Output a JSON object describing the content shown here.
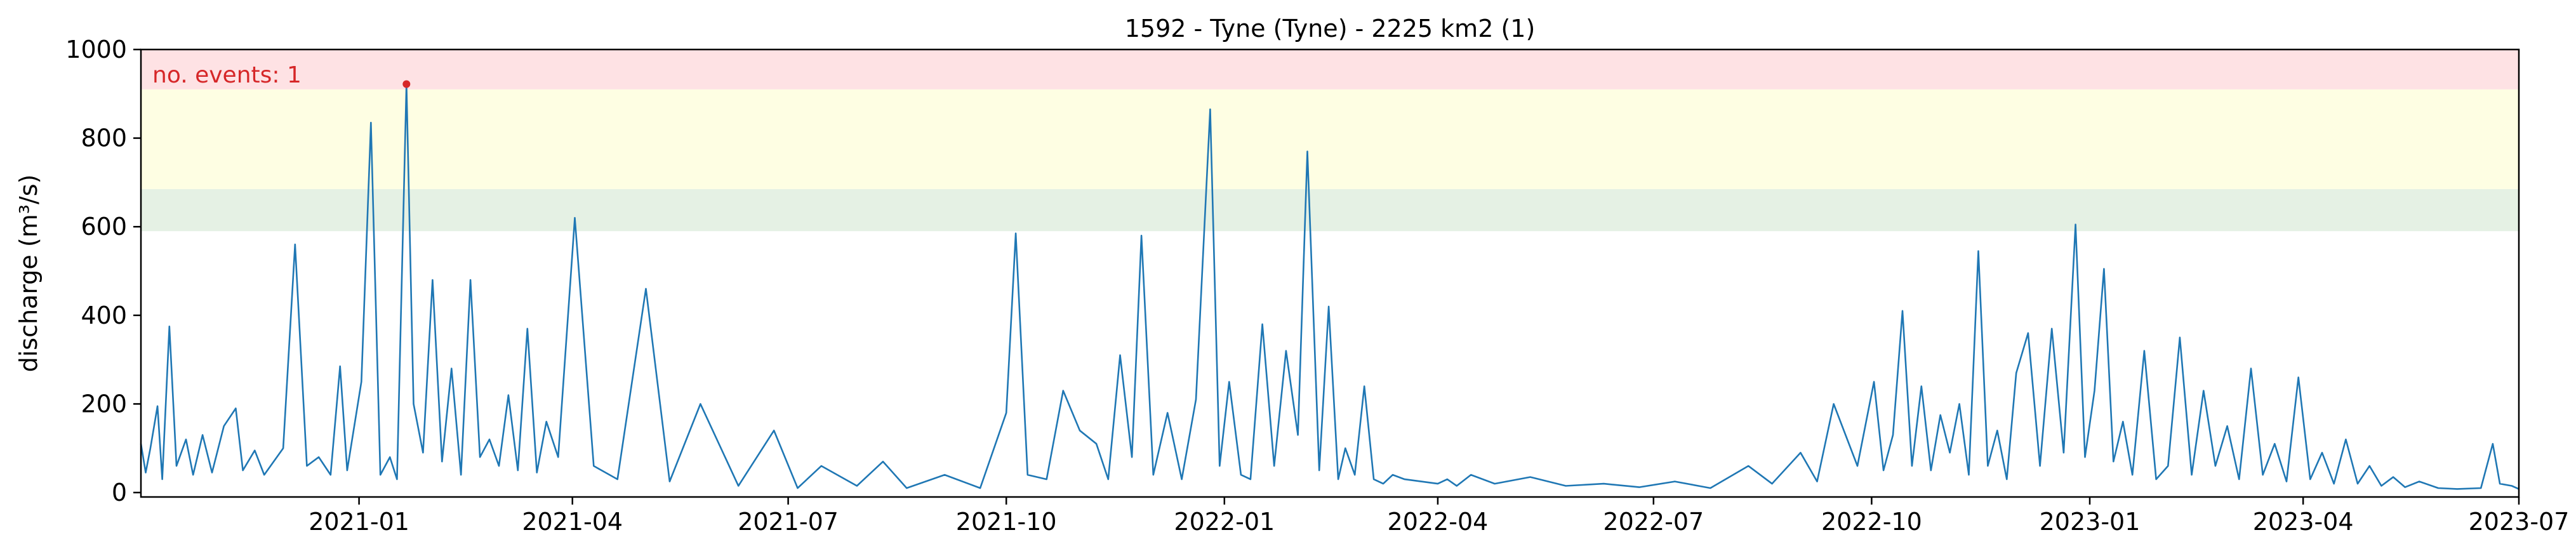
{
  "chart_data": {
    "type": "line",
    "title": "1592 - Tyne (Tyne) - 2225 km2 (1)",
    "xlabel": "",
    "ylabel": "discharge (m³/s)",
    "xlim": [
      "2020-10-01",
      "2023-07-01"
    ],
    "ylim": [
      -10,
      1000
    ],
    "xticks": [
      "2021-01",
      "2021-04",
      "2021-07",
      "2021-10",
      "2022-01",
      "2022-04",
      "2022-07",
      "2022-10",
      "2023-01",
      "2023-04",
      "2023-07"
    ],
    "yticks": [
      0,
      200,
      400,
      600,
      800,
      1000
    ],
    "grid": false,
    "line_color": "#1f77b4",
    "thresholds": [
      {
        "from": 590,
        "to": 685,
        "color": "#e5f1e4"
      },
      {
        "from": 685,
        "to": 910,
        "color": "#fefee3"
      },
      {
        "from": 910,
        "to": 1000,
        "color": "#fee2e4"
      }
    ],
    "event_marker": {
      "x": "2021-01-21",
      "y": 922,
      "color": "#d62728"
    },
    "annotation": {
      "text": "no. events: 1",
      "color": "#d62728"
    },
    "series": [
      {
        "x": [
          "2020-10-01",
          "2020-10-03",
          "2020-10-05",
          "2020-10-08",
          "2020-10-10",
          "2020-10-13",
          "2020-10-16",
          "2020-10-20",
          "2020-10-23",
          "2020-10-27",
          "2020-10-31",
          "2020-11-05",
          "2020-11-10",
          "2020-11-13",
          "2020-11-18",
          "2020-11-22",
          "2020-11-26",
          "2020-11-30",
          "2020-12-05",
          "2020-12-10",
          "2020-12-15",
          "2020-12-20",
          "2020-12-24",
          "2020-12-27",
          "2021-01-02",
          "2021-01-06",
          "2021-01-10",
          "2021-01-14",
          "2021-01-17",
          "2021-01-21",
          "2021-01-24",
          "2021-01-28",
          "2021-02-01",
          "2021-02-05",
          "2021-02-09",
          "2021-02-13",
          "2021-02-17",
          "2021-02-21",
          "2021-02-25",
          "2021-03-01",
          "2021-03-05",
          "2021-03-09",
          "2021-03-13",
          "2021-03-17",
          "2021-03-21",
          "2021-03-26",
          "2021-04-02",
          "2021-04-10",
          "2021-04-20",
          "2021-05-02",
          "2021-05-12",
          "2021-05-25",
          "2021-06-10",
          "2021-06-25",
          "2021-07-05",
          "2021-07-15",
          "2021-07-30",
          "2021-08-10",
          "2021-08-20",
          "2021-09-05",
          "2021-09-20",
          "2021-10-01",
          "2021-10-05",
          "2021-10-10",
          "2021-10-18",
          "2021-10-25",
          "2021-11-01",
          "2021-11-08",
          "2021-11-13",
          "2021-11-18",
          "2021-11-23",
          "2021-11-27",
          "2021-12-02",
          "2021-12-08",
          "2021-12-14",
          "2021-12-20",
          "2021-12-26",
          "2021-12-30",
          "2022-01-03",
          "2022-01-08",
          "2022-01-12",
          "2022-01-17",
          "2022-01-22",
          "2022-01-27",
          "2022-02-01",
          "2022-02-05",
          "2022-02-10",
          "2022-02-14",
          "2022-02-18",
          "2022-02-21",
          "2022-02-25",
          "2022-03-01",
          "2022-03-05",
          "2022-03-09",
          "2022-03-13",
          "2022-03-18",
          "2022-03-25",
          "2022-04-01",
          "2022-04-05",
          "2022-04-09",
          "2022-04-15",
          "2022-04-25",
          "2022-05-10",
          "2022-05-25",
          "2022-06-10",
          "2022-06-25",
          "2022-07-10",
          "2022-07-25",
          "2022-08-10",
          "2022-08-20",
          "2022-09-01",
          "2022-09-08",
          "2022-09-15",
          "2022-09-25",
          "2022-10-02",
          "2022-10-06",
          "2022-10-10",
          "2022-10-14",
          "2022-10-18",
          "2022-10-22",
          "2022-10-26",
          "2022-10-30",
          "2022-11-03",
          "2022-11-07",
          "2022-11-11",
          "2022-11-15",
          "2022-11-19",
          "2022-11-23",
          "2022-11-27",
          "2022-12-01",
          "2022-12-06",
          "2022-12-11",
          "2022-12-16",
          "2022-12-21",
          "2022-12-26",
          "2022-12-30",
          "2023-01-03",
          "2023-01-07",
          "2023-01-11",
          "2023-01-15",
          "2023-01-19",
          "2023-01-24",
          "2023-01-29",
          "2023-02-03",
          "2023-02-08",
          "2023-02-13",
          "2023-02-18",
          "2023-02-23",
          "2023-02-28",
          "2023-03-05",
          "2023-03-10",
          "2023-03-15",
          "2023-03-20",
          "2023-03-25",
          "2023-03-30",
          "2023-04-04",
          "2023-04-09",
          "2023-04-14",
          "2023-04-19",
          "2023-04-24",
          "2023-04-29",
          "2023-05-04",
          "2023-05-09",
          "2023-05-14",
          "2023-05-20",
          "2023-05-28",
          "2023-06-05",
          "2023-06-15",
          "2023-06-20",
          "2023-06-23",
          "2023-06-28",
          "2023-07-01"
        ],
        "y": [
          110,
          45,
          100,
          195,
          30,
          375,
          60,
          120,
          40,
          130,
          45,
          150,
          190,
          50,
          95,
          40,
          70,
          100,
          560,
          60,
          80,
          40,
          285,
          50,
          250,
          835,
          40,
          80,
          30,
          922,
          200,
          90,
          480,
          70,
          280,
          40,
          480,
          80,
          120,
          60,
          220,
          50,
          370,
          45,
          160,
          80,
          620,
          60,
          30,
          460,
          25,
          200,
          15,
          140,
          10,
          60,
          15,
          70,
          10,
          40,
          10,
          180,
          585,
          40,
          30,
          230,
          140,
          110,
          30,
          310,
          80,
          580,
          40,
          180,
          30,
          210,
          865,
          60,
          250,
          40,
          30,
          380,
          60,
          320,
          130,
          770,
          50,
          420,
          30,
          100,
          40,
          240,
          30,
          20,
          40,
          30,
          25,
          20,
          30,
          15,
          40,
          20,
          35,
          15,
          20,
          12,
          25,
          10,
          60,
          20,
          90,
          25,
          200,
          60,
          250,
          50,
          130,
          410,
          60,
          240,
          50,
          175,
          90,
          200,
          40,
          545,
          60,
          140,
          30,
          270,
          360,
          60,
          370,
          90,
          605,
          80,
          230,
          505,
          70,
          160,
          40,
          320,
          30,
          60,
          350,
          40,
          230,
          60,
          150,
          30,
          280,
          40,
          110,
          25,
          260,
          30,
          90,
          20,
          120,
          20,
          60,
          15,
          35,
          12,
          25,
          10,
          8,
          10,
          110,
          20,
          15,
          8
        ]
      }
    ]
  }
}
